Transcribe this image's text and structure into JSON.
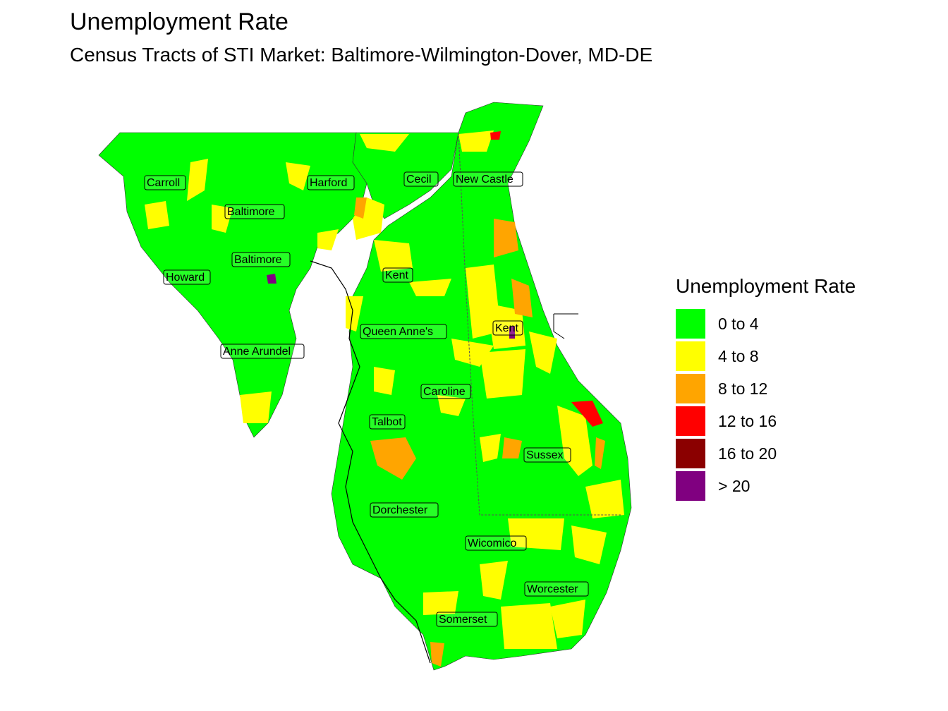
{
  "title": "Unemployment Rate",
  "subtitle": "Census Tracts of STI Market: Baltimore-Wilmington-Dover, MD-DE",
  "legend": {
    "title": "Unemployment Rate",
    "items": [
      {
        "label": "0 to 4",
        "color": "#00FF00"
      },
      {
        "label": "4 to 8",
        "color": "#FFFF00"
      },
      {
        "label": "8 to 12",
        "color": "#FFA500"
      },
      {
        "label": "12 to 16",
        "color": "#FF0000"
      },
      {
        "label": "16 to 20",
        "color": "#8B0000"
      },
      {
        "label": "> 20",
        "color": "#800080"
      }
    ]
  },
  "counties": [
    "Carroll",
    "Harford",
    "Cecil",
    "New Castle",
    "Baltimore",
    "Baltimore",
    "Howard",
    "Kent",
    "Kent",
    "Queen Anne's",
    "Anne Arundel",
    "Caroline",
    "Talbot",
    "Sussex",
    "Dorchester",
    "Wicomico",
    "Worcester",
    "Somerset"
  ]
}
